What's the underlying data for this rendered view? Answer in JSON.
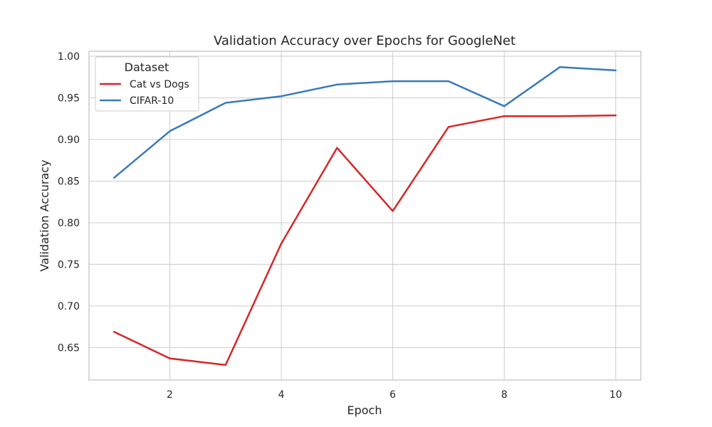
{
  "chart_data": {
    "type": "line",
    "title": "Validation Accuracy over Epochs for GoogleNet",
    "xlabel": "Epoch",
    "ylabel": "Validation Accuracy",
    "x": [
      1,
      2,
      3,
      4,
      5,
      6,
      7,
      8,
      9,
      10
    ],
    "xlim": [
      0.55,
      10.45
    ],
    "ylim": [
      0.611,
      1.006
    ],
    "xticks": [
      2,
      4,
      6,
      8,
      10
    ],
    "yticks": [
      0.65,
      0.7,
      0.75,
      0.8,
      0.85,
      0.9,
      0.95,
      1.0
    ],
    "grid": true,
    "legend": {
      "title": "Dataset",
      "placement": "top-left"
    },
    "series": [
      {
        "name": "Cat vs Dogs",
        "color": "#d62728",
        "values": [
          0.669,
          0.637,
          0.629,
          0.775,
          0.89,
          0.814,
          0.915,
          0.928,
          0.928,
          0.929
        ]
      },
      {
        "name": "CIFAR-10",
        "color": "#3a7ab8",
        "values": [
          0.854,
          0.91,
          0.944,
          0.952,
          0.966,
          0.97,
          0.97,
          0.94,
          0.987,
          0.983
        ]
      }
    ]
  }
}
